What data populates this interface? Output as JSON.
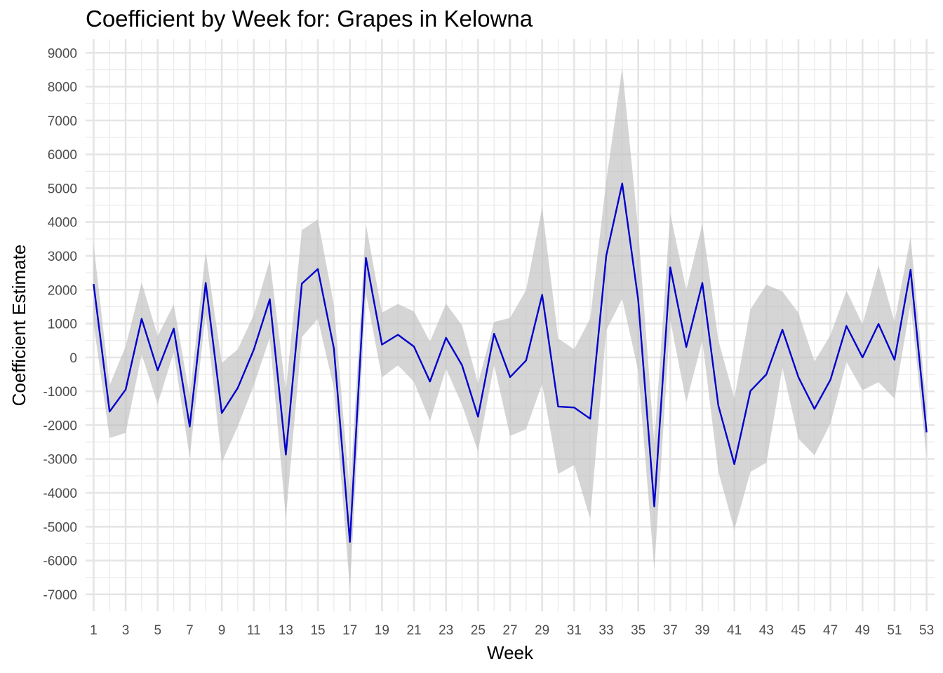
{
  "chart_data": {
    "type": "line",
    "title": "Coefficient by Week for: Grapes in Kelowna",
    "xlabel": "Week",
    "ylabel": "Coefficient Estimate",
    "xlim": [
      0.5,
      53.5
    ],
    "ylim": [
      -7500,
      9400
    ],
    "x_ticks": [
      1,
      3,
      5,
      7,
      9,
      11,
      13,
      15,
      17,
      19,
      21,
      23,
      25,
      27,
      29,
      31,
      33,
      35,
      37,
      39,
      41,
      43,
      45,
      47,
      49,
      51,
      53
    ],
    "y_ticks": [
      -7000,
      -6000,
      -5000,
      -4000,
      -3000,
      -2000,
      -1000,
      0,
      1000,
      2000,
      3000,
      4000,
      5000,
      6000,
      7000,
      8000,
      9000
    ],
    "grid": true,
    "legend": "none",
    "line_color": "#0000cd",
    "band_color": "#bebebe",
    "series": [
      {
        "x": [
          1,
          2,
          3,
          4,
          5,
          6,
          7,
          8,
          9,
          10,
          11,
          12,
          13,
          14,
          15,
          16,
          17,
          18,
          19,
          20,
          21,
          22,
          23,
          24,
          25,
          26,
          27,
          28,
          29,
          30,
          31,
          32,
          33,
          34,
          35,
          36,
          37,
          38,
          39,
          40,
          41,
          42,
          43,
          44,
          45,
          46,
          47,
          48,
          49,
          50,
          51,
          52,
          53
        ],
        "values": [
          2170,
          -1600,
          -950,
          1140,
          -380,
          850,
          -2040,
          2200,
          -1640,
          -900,
          230,
          1720,
          -2870,
          2180,
          2610,
          260,
          -5450,
          2940,
          380,
          670,
          320,
          -710,
          580,
          -230,
          -1750,
          700,
          -580,
          -90,
          1850,
          -1450,
          -1480,
          -1810,
          3000,
          5140,
          1700,
          -4400,
          2660,
          310,
          2200,
          -1420,
          -3150,
          -990,
          -500,
          820,
          -580,
          -1520,
          -660,
          930,
          0,
          990,
          -70,
          2590,
          -2210
        ],
        "lower": [
          1000,
          -2380,
          -2230,
          90,
          -1380,
          150,
          -2950,
          1300,
          -3100,
          -2040,
          -820,
          580,
          -4750,
          600,
          1140,
          -910,
          -6830,
          1900,
          -590,
          -230,
          -720,
          -1880,
          -330,
          -1400,
          -2780,
          -220,
          -2320,
          -2120,
          -780,
          -3440,
          -3180,
          -4770,
          800,
          1730,
          -400,
          -6260,
          1100,
          -1330,
          500,
          -3370,
          -5090,
          -3380,
          -3110,
          -300,
          -2400,
          -2890,
          -1950,
          -130,
          -970,
          -730,
          -1220,
          1590,
          -2950
        ],
        "upper": [
          3340,
          -820,
          330,
          2220,
          630,
          1570,
          -1140,
          3130,
          -160,
          240,
          1260,
          2880,
          -990,
          3760,
          4080,
          1540,
          -4050,
          3940,
          1330,
          1580,
          1360,
          470,
          1590,
          950,
          -770,
          1050,
          1170,
          1990,
          4430,
          560,
          240,
          1150,
          5200,
          8560,
          3780,
          -2540,
          4250,
          1990,
          3950,
          510,
          -1210,
          1420,
          2150,
          1950,
          1320,
          -120,
          660,
          1970,
          980,
          2720,
          1050,
          3560,
          -1470
        ]
      }
    ]
  }
}
